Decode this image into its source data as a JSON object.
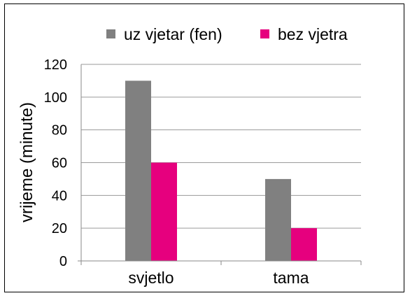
{
  "chart_data": {
    "type": "bar",
    "title": "",
    "xlabel": "",
    "ylabel": "vrijeme (minute)",
    "ylim": [
      0,
      120
    ],
    "yticks": [
      0,
      20,
      40,
      60,
      80,
      100,
      120
    ],
    "grid": true,
    "legend_position": "top",
    "categories": [
      "svjetlo",
      "tama"
    ],
    "series": [
      {
        "name": "uz vjetar (fen)",
        "color": "#808080",
        "values": [
          110,
          50
        ]
      },
      {
        "name": "bez vjetra",
        "color": "#e6007e",
        "values": [
          60,
          20
        ]
      }
    ]
  }
}
